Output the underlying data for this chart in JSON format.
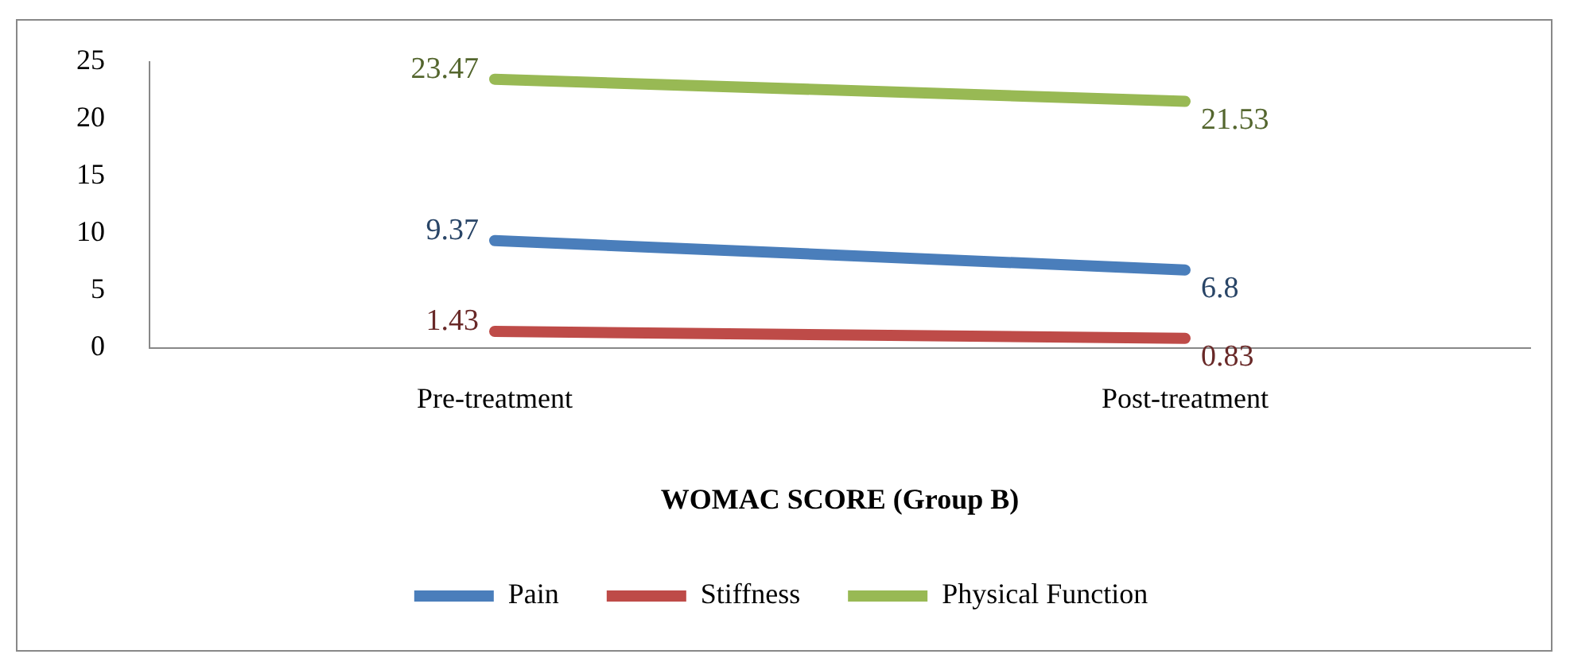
{
  "chart_data": {
    "type": "line",
    "xlabel": "WOMAC SCORE (Group B)",
    "categories": [
      "Pre-treatment",
      "Post-treatment"
    ],
    "series": [
      {
        "name": "Pain",
        "color": "#4a7ebb",
        "values": [
          9.37,
          6.8
        ]
      },
      {
        "name": "Stiffness",
        "color": "#be4b48",
        "values": [
          1.43,
          0.83
        ]
      },
      {
        "name": "Physical Function",
        "color": "#98b954",
        "values": [
          23.47,
          21.53
        ]
      }
    ],
    "ylim": [
      0,
      25
    ],
    "yticks": [
      0,
      5,
      10,
      15,
      20,
      25
    ],
    "grid": false,
    "legend": "bottom",
    "marker": "none",
    "line_style": "solid",
    "data_labels": true
  }
}
